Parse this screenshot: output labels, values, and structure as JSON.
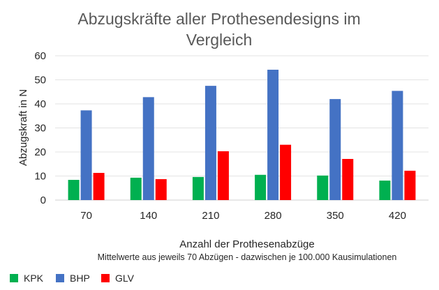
{
  "chart_data": {
    "type": "bar",
    "title_lines": [
      "Abzugskräfte aller Prothesendesigns im",
      "Vergleich"
    ],
    "xlabel": "Anzahl der Prothesenabzüge",
    "x_subtitle": "Mittelwerte aus jeweils 70 Abzügen - dazwischen je 100.000 Kausimulationen",
    "ylabel": "Abzugskraft in N",
    "ylim": [
      0,
      60
    ],
    "yticks": [
      0,
      10,
      20,
      30,
      40,
      50,
      60
    ],
    "grid": true,
    "legend_position": "bottom-left",
    "categories": [
      "70",
      "140",
      "210",
      "280",
      "350",
      "420"
    ],
    "series": [
      {
        "name": "KPK",
        "color": "#00B050",
        "values": [
          8.4,
          9.3,
          9.6,
          10.5,
          10.2,
          8.1
        ]
      },
      {
        "name": "BHP",
        "color": "#4472C4",
        "values": [
          37.3,
          42.8,
          47.5,
          54.2,
          42.0,
          45.4
        ]
      },
      {
        "name": "GLV",
        "color": "#FF0000",
        "values": [
          11.3,
          8.7,
          20.3,
          23.0,
          17.1,
          12.2
        ]
      }
    ]
  }
}
